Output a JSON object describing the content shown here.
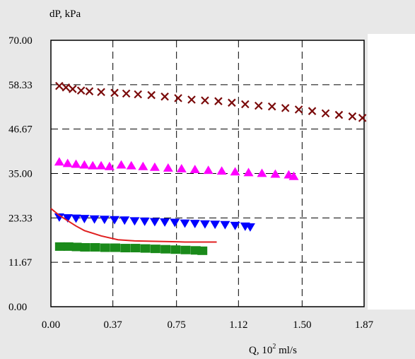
{
  "chart_data": {
    "type": "scatter",
    "title": "",
    "ylabel": "dP, kPa",
    "xlabel_prefix": "Q, 10",
    "xlabel_sup": "2",
    "xlabel_suffix": " ml/s",
    "xlim": [
      0,
      1.87
    ],
    "ylim": [
      0,
      70
    ],
    "x_ticks": [
      0.0,
      0.37,
      0.75,
      1.12,
      1.5,
      1.87
    ],
    "x_tick_labels": [
      "0.00",
      "0.37",
      "0.75",
      "1.12",
      "1.50",
      "1.87"
    ],
    "y_ticks": [
      0,
      11.67,
      23.33,
      35,
      46.67,
      58.33,
      70
    ],
    "y_tick_labels": [
      "0.00",
      "11.67",
      "23.33",
      "35.00",
      "46.67",
      "58.33",
      "70.00"
    ],
    "grid": true,
    "series": [
      {
        "marker": "x",
        "color": "#7a0a0a",
        "x": [
          0.05,
          0.09,
          0.13,
          0.18,
          0.23,
          0.3,
          0.38,
          0.45,
          0.52,
          0.6,
          0.68,
          0.76,
          0.84,
          0.92,
          1.0,
          1.08,
          1.16,
          1.24,
          1.32,
          1.4,
          1.48,
          1.56,
          1.64,
          1.72,
          1.8,
          1.86
        ],
        "y": [
          58.0,
          57.6,
          57.2,
          56.8,
          56.6,
          56.4,
          56.2,
          56.0,
          55.8,
          55.6,
          55.2,
          54.8,
          54.4,
          54.2,
          54.0,
          53.6,
          53.2,
          52.8,
          52.6,
          52.2,
          51.8,
          51.4,
          50.8,
          50.4,
          50.0,
          49.6
        ]
      },
      {
        "marker": "triangle-up",
        "color": "#ff00ff",
        "x": [
          0.05,
          0.1,
          0.15,
          0.2,
          0.25,
          0.3,
          0.35,
          0.42,
          0.48,
          0.55,
          0.62,
          0.7,
          0.78,
          0.86,
          0.94,
          1.02,
          1.1,
          1.18,
          1.26,
          1.34,
          1.42,
          1.45
        ],
        "y": [
          38.0,
          37.6,
          37.4,
          37.2,
          37.0,
          37.0,
          36.8,
          37.2,
          37.0,
          36.8,
          36.6,
          36.4,
          36.2,
          36.0,
          35.8,
          35.6,
          35.4,
          35.2,
          35.0,
          34.8,
          34.6,
          34.2
        ]
      },
      {
        "marker": "triangle-down",
        "color": "#0000ff",
        "x": [
          0.05,
          0.1,
          0.15,
          0.2,
          0.26,
          0.32,
          0.38,
          0.44,
          0.5,
          0.56,
          0.62,
          0.68,
          0.74,
          0.8,
          0.86,
          0.92,
          0.98,
          1.04,
          1.1,
          1.16,
          1.19
        ],
        "y": [
          23.6,
          23.4,
          23.3,
          23.2,
          23.1,
          23.0,
          22.9,
          22.8,
          22.6,
          22.5,
          22.4,
          22.3,
          22.2,
          22.0,
          21.9,
          21.8,
          21.7,
          21.6,
          21.4,
          21.2,
          21.0
        ]
      },
      {
        "marker": "square",
        "color": "#1a8a1a",
        "x": [
          0.05,
          0.1,
          0.15,
          0.2,
          0.26,
          0.32,
          0.38,
          0.44,
          0.5,
          0.56,
          0.62,
          0.68,
          0.74,
          0.8,
          0.86,
          0.9
        ],
        "y": [
          15.8,
          15.8,
          15.7,
          15.6,
          15.6,
          15.5,
          15.5,
          15.4,
          15.4,
          15.3,
          15.2,
          15.1,
          15.0,
          14.9,
          14.8,
          14.7
        ]
      },
      {
        "marker": "line",
        "color": "#e02020",
        "x": [
          0.0,
          0.05,
          0.1,
          0.15,
          0.2,
          0.3,
          0.4,
          0.5,
          0.6,
          0.7,
          0.8,
          0.9,
          0.99
        ],
        "y": [
          25.8,
          24.0,
          22.6,
          21.2,
          20.0,
          18.6,
          17.6,
          17.3,
          17.2,
          17.1,
          17.0,
          17.0,
          17.0
        ]
      }
    ]
  }
}
